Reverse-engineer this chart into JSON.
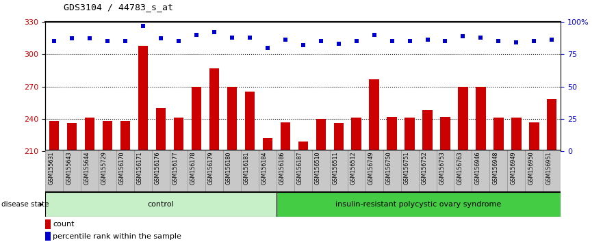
{
  "title": "GDS3104 / 44783_s_at",
  "samples": [
    "GSM155631",
    "GSM155643",
    "GSM155644",
    "GSM155729",
    "GSM156170",
    "GSM156171",
    "GSM156176",
    "GSM156177",
    "GSM156178",
    "GSM156179",
    "GSM156180",
    "GSM156181",
    "GSM156184",
    "GSM156186",
    "GSM156187",
    "GSM156510",
    "GSM156511",
    "GSM156512",
    "GSM156749",
    "GSM156750",
    "GSM156751",
    "GSM156752",
    "GSM156753",
    "GSM156763",
    "GSM156946",
    "GSM156948",
    "GSM156949",
    "GSM156950",
    "GSM156951"
  ],
  "counts": [
    238,
    236,
    241,
    238,
    238,
    308,
    250,
    241,
    270,
    287,
    270,
    265,
    222,
    237,
    219,
    240,
    236,
    241,
    277,
    242,
    241,
    248,
    242,
    270,
    270,
    241,
    241,
    237,
    258
  ],
  "percentile_ranks": [
    85,
    87,
    87,
    85,
    85,
    97,
    87,
    85,
    90,
    92,
    88,
    88,
    80,
    86,
    82,
    85,
    83,
    85,
    90,
    85,
    85,
    86,
    85,
    89,
    88,
    85,
    84,
    85,
    86
  ],
  "control_count": 13,
  "disease_count": 16,
  "ymin": 210,
  "ymax": 330,
  "yticks_left": [
    210,
    240,
    270,
    300,
    330
  ],
  "yticks_right": [
    0,
    25,
    50,
    75,
    100
  ],
  "bar_color": "#CC0000",
  "dot_color": "#0000CC",
  "control_color": "#C8F0C8",
  "disease_color": "#44CC44",
  "sample_bg": "#C8C8C8",
  "plot_bg": "#FFFFFF",
  "label_left_color": "#CC0000",
  "label_right_color": "#0000CC"
}
